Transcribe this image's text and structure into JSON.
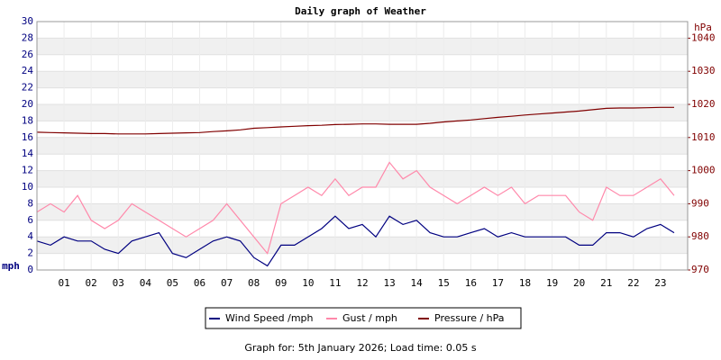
{
  "chart_data": {
    "type": "line",
    "title": "Daily graph of Weather",
    "y_label": "mph",
    "y2_label": "hPa",
    "footer": "Graph for: 5th January 2026; Load time: 0.05 s",
    "xlim": [
      0,
      24
    ],
    "xticks": [
      {
        "value": 1,
        "label": "01"
      },
      {
        "value": 2,
        "label": "02"
      },
      {
        "value": 3,
        "label": "03"
      },
      {
        "value": 4,
        "label": "04"
      },
      {
        "value": 5,
        "label": "05"
      },
      {
        "value": 6,
        "label": "06"
      },
      {
        "value": 7,
        "label": "07"
      },
      {
        "value": 8,
        "label": "08"
      },
      {
        "value": 9,
        "label": "09"
      },
      {
        "value": 10,
        "label": "10"
      },
      {
        "value": 11,
        "label": "11"
      },
      {
        "value": 12,
        "label": "12"
      },
      {
        "value": 13,
        "label": "13"
      },
      {
        "value": 14,
        "label": "14"
      },
      {
        "value": 15,
        "label": "15"
      },
      {
        "value": 16,
        "label": "16"
      },
      {
        "value": 17,
        "label": "17"
      },
      {
        "value": 18,
        "label": "18"
      },
      {
        "value": 19,
        "label": "19"
      },
      {
        "value": 20,
        "label": "20"
      },
      {
        "value": 21,
        "label": "21"
      },
      {
        "value": 22,
        "label": "22"
      },
      {
        "value": 23,
        "label": "23"
      }
    ],
    "ylim": [
      0,
      30
    ],
    "yticks": [
      0,
      2,
      4,
      6,
      8,
      10,
      12,
      14,
      16,
      18,
      20,
      22,
      24,
      26,
      28,
      30
    ],
    "y2lim": [
      970,
      1045
    ],
    "y2ticks": [
      970,
      980,
      990,
      1000,
      1010,
      1020,
      1030,
      1040
    ],
    "grid": true,
    "x": [
      0,
      0.5,
      1,
      1.5,
      2,
      2.5,
      3,
      3.5,
      4,
      4.5,
      5,
      5.5,
      6,
      6.5,
      7,
      7.5,
      8,
      8.5,
      9,
      9.5,
      10,
      10.5,
      11,
      11.5,
      12,
      12.5,
      13,
      13.5,
      14,
      14.5,
      15,
      15.5,
      16,
      16.5,
      17,
      17.5,
      18,
      18.5,
      19,
      19.5,
      20,
      20.5,
      21,
      21.5,
      22,
      22.5,
      23,
      23.5
    ],
    "series": [
      {
        "name": "Wind Speed /mph",
        "color": "#000080",
        "values": [
          3.5,
          3,
          4,
          3.5,
          3.5,
          2.5,
          2,
          3.5,
          4,
          4.5,
          2,
          1.5,
          2.5,
          3.5,
          4,
          3.5,
          1.5,
          0.5,
          3,
          3,
          4,
          5,
          6.5,
          5,
          5.5,
          4,
          6.5,
          5.5,
          6,
          4.5,
          4,
          4,
          4.5,
          5,
          4,
          4.5,
          4,
          4,
          4,
          4,
          3,
          3,
          4.5,
          4.5,
          4,
          5,
          5.5,
          4.5
        ]
      },
      {
        "name": "Gust / mph",
        "color": "#ff88aa",
        "values": [
          7,
          8,
          7,
          9,
          6,
          5,
          6,
          8,
          7,
          6,
          5,
          4,
          5,
          6,
          8,
          6,
          4,
          2,
          8,
          9,
          10,
          9,
          11,
          9,
          10,
          10,
          13,
          11,
          12,
          10,
          9,
          8,
          9,
          10,
          9,
          10,
          8,
          9,
          9,
          9,
          7,
          6,
          10,
          9,
          9,
          10,
          11,
          9
        ]
      },
      {
        "name": "Pressure / hPa",
        "color": "#800000",
        "axis": "y2",
        "values": [
          1011.6,
          1011.5,
          1011.4,
          1011.3,
          1011.2,
          1011.2,
          1011.1,
          1011.1,
          1011.1,
          1011.2,
          1011.3,
          1011.4,
          1011.5,
          1011.8,
          1012.0,
          1012.3,
          1012.8,
          1013.0,
          1013.2,
          1013.4,
          1013.6,
          1013.7,
          1013.9,
          1014.0,
          1014.1,
          1014.1,
          1014.0,
          1014.0,
          1014.0,
          1014.3,
          1014.7,
          1015.0,
          1015.3,
          1015.7,
          1016.1,
          1016.4,
          1016.8,
          1017.1,
          1017.4,
          1017.7,
          1018.0,
          1018.4,
          1018.8,
          1018.9,
          1018.9,
          1019.0,
          1019.1,
          1019.1
        ]
      }
    ]
  }
}
